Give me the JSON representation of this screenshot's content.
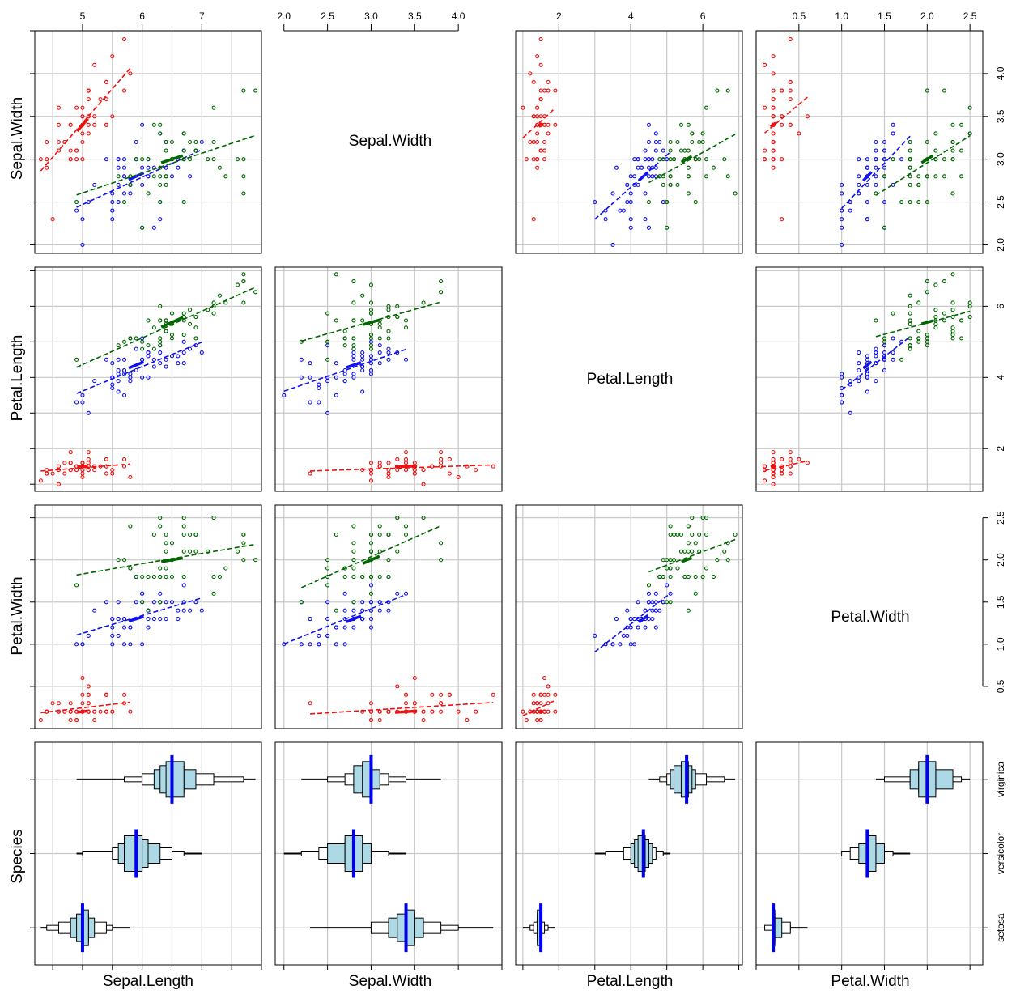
{
  "variables": [
    "Sepal.Length",
    "Sepal.Width",
    "Petal.Length",
    "Petal.Width",
    "Species"
  ],
  "species": [
    "setosa",
    "versicolor",
    "virginica"
  ],
  "colors": {
    "setosa": "#ee1111",
    "versicolor": "#1111ee",
    "virginica": "#006600",
    "grid": "#c8c8c8",
    "box_fill": "#add8e6",
    "median": "#0000ee"
  },
  "top_axes": {
    "col0": [
      "5",
      "6",
      "7"
    ],
    "col1": [
      "2.0",
      "2.5",
      "3.0",
      "3.5",
      "4.0"
    ],
    "col2": [
      "2",
      "4",
      "6"
    ],
    "col3": [
      "0.5",
      "1.0",
      "1.5",
      "2.0",
      "2.5"
    ]
  },
  "right_axes": {
    "row0": [
      "2.0",
      "2.5",
      "3.0",
      "3.5",
      "4.0"
    ],
    "row1": [
      "2",
      "4",
      "6"
    ],
    "row2": [
      "0.5",
      "1.0",
      "1.5",
      "2.0",
      "2.5"
    ],
    "row3": [
      "setosa",
      "versicolor",
      "virginica"
    ]
  },
  "chart_data": {
    "type": "scatter",
    "title": "",
    "subtitle": "",
    "layout": "scatterplot matrix (4 columns x 4 rows); diagonal panels show variable names; Species row shows per-species stacked histogram boxplots with median lines",
    "columns": [
      "Sepal.Length",
      "Sepal.Width",
      "Petal.Length",
      "Petal.Width"
    ],
    "rows": [
      "Sepal.Width",
      "Petal.Length",
      "Petal.Width",
      "Species"
    ],
    "axis_ranges": {
      "Sepal.Length": [
        4.2,
        8.0
      ],
      "Sepal.Width": [
        1.9,
        4.5
      ],
      "Petal.Length": [
        0.8,
        7.1
      ],
      "Petal.Width": [
        0.0,
        2.65
      ],
      "Species": [
        0.5,
        3.5
      ]
    },
    "grid": true,
    "legend": "none",
    "series": [
      {
        "name": "setosa",
        "color": "#ee1111",
        "points": [
          [
            5.1,
            3.5,
            1.4,
            0.2
          ],
          [
            4.9,
            3.0,
            1.4,
            0.2
          ],
          [
            4.7,
            3.2,
            1.3,
            0.2
          ],
          [
            4.6,
            3.1,
            1.5,
            0.2
          ],
          [
            5.0,
            3.6,
            1.4,
            0.2
          ],
          [
            5.4,
            3.9,
            1.7,
            0.4
          ],
          [
            4.6,
            3.4,
            1.4,
            0.3
          ],
          [
            5.0,
            3.4,
            1.5,
            0.2
          ],
          [
            4.4,
            2.9,
            1.4,
            0.2
          ],
          [
            4.9,
            3.1,
            1.5,
            0.1
          ],
          [
            5.4,
            3.7,
            1.5,
            0.2
          ],
          [
            4.8,
            3.4,
            1.6,
            0.2
          ],
          [
            4.8,
            3.0,
            1.4,
            0.1
          ],
          [
            4.3,
            3.0,
            1.1,
            0.1
          ],
          [
            5.8,
            4.0,
            1.2,
            0.2
          ],
          [
            5.7,
            4.4,
            1.5,
            0.4
          ],
          [
            5.4,
            3.9,
            1.3,
            0.4
          ],
          [
            5.1,
            3.5,
            1.4,
            0.3
          ],
          [
            5.7,
            3.8,
            1.7,
            0.3
          ],
          [
            5.1,
            3.8,
            1.5,
            0.3
          ],
          [
            5.4,
            3.4,
            1.7,
            0.2
          ],
          [
            5.1,
            3.7,
            1.5,
            0.4
          ],
          [
            4.6,
            3.6,
            1.0,
            0.2
          ],
          [
            5.1,
            3.3,
            1.7,
            0.5
          ],
          [
            4.8,
            3.4,
            1.9,
            0.2
          ],
          [
            5.0,
            3.0,
            1.6,
            0.2
          ],
          [
            5.0,
            3.4,
            1.6,
            0.4
          ],
          [
            5.2,
            3.5,
            1.5,
            0.2
          ],
          [
            5.2,
            3.4,
            1.4,
            0.2
          ],
          [
            4.7,
            3.2,
            1.6,
            0.2
          ],
          [
            4.8,
            3.1,
            1.6,
            0.2
          ],
          [
            5.4,
            3.4,
            1.5,
            0.4
          ],
          [
            5.2,
            4.1,
            1.5,
            0.1
          ],
          [
            5.5,
            4.2,
            1.4,
            0.2
          ],
          [
            4.9,
            3.1,
            1.5,
            0.2
          ],
          [
            5.0,
            3.2,
            1.2,
            0.2
          ],
          [
            5.5,
            3.5,
            1.3,
            0.2
          ],
          [
            4.9,
            3.6,
            1.4,
            0.1
          ],
          [
            4.4,
            3.0,
            1.3,
            0.2
          ],
          [
            5.1,
            3.4,
            1.5,
            0.2
          ],
          [
            5.0,
            3.5,
            1.3,
            0.3
          ],
          [
            4.5,
            2.3,
            1.3,
            0.3
          ],
          [
            4.4,
            3.2,
            1.3,
            0.2
          ],
          [
            5.0,
            3.5,
            1.6,
            0.6
          ],
          [
            5.1,
            3.8,
            1.9,
            0.4
          ],
          [
            4.8,
            3.0,
            1.4,
            0.3
          ],
          [
            5.1,
            3.8,
            1.6,
            0.2
          ],
          [
            4.6,
            3.2,
            1.4,
            0.2
          ],
          [
            5.3,
            3.7,
            1.5,
            0.2
          ],
          [
            5.0,
            3.3,
            1.4,
            0.2
          ]
        ],
        "median": [
          5.0,
          3.4,
          1.5,
          0.2
        ]
      },
      {
        "name": "versicolor",
        "color": "#1111ee",
        "points": [
          [
            7.0,
            3.2,
            4.7,
            1.4
          ],
          [
            6.4,
            3.2,
            4.5,
            1.5
          ],
          [
            6.9,
            3.1,
            4.9,
            1.5
          ],
          [
            5.5,
            2.3,
            4.0,
            1.3
          ],
          [
            6.5,
            2.8,
            4.6,
            1.5
          ],
          [
            5.7,
            2.8,
            4.5,
            1.3
          ],
          [
            6.3,
            3.3,
            4.7,
            1.6
          ],
          [
            4.9,
            2.4,
            3.3,
            1.0
          ],
          [
            6.6,
            2.9,
            4.6,
            1.3
          ],
          [
            5.2,
            2.7,
            3.9,
            1.4
          ],
          [
            5.0,
            2.0,
            3.5,
            1.0
          ],
          [
            5.9,
            3.0,
            4.2,
            1.5
          ],
          [
            6.0,
            2.2,
            4.0,
            1.0
          ],
          [
            6.1,
            2.9,
            4.7,
            1.4
          ],
          [
            5.6,
            2.9,
            3.6,
            1.3
          ],
          [
            6.7,
            3.1,
            4.4,
            1.4
          ],
          [
            5.6,
            3.0,
            4.5,
            1.5
          ],
          [
            5.8,
            2.7,
            4.1,
            1.0
          ],
          [
            6.2,
            2.2,
            4.5,
            1.5
          ],
          [
            5.6,
            2.5,
            3.9,
            1.1
          ],
          [
            5.9,
            3.2,
            4.8,
            1.8
          ],
          [
            6.1,
            2.8,
            4.0,
            1.3
          ],
          [
            6.3,
            2.5,
            4.9,
            1.5
          ],
          [
            6.1,
            2.8,
            4.7,
            1.2
          ],
          [
            6.4,
            2.9,
            4.3,
            1.3
          ],
          [
            6.6,
            3.0,
            4.4,
            1.4
          ],
          [
            6.8,
            2.8,
            4.8,
            1.4
          ],
          [
            6.7,
            3.0,
            5.0,
            1.7
          ],
          [
            6.0,
            2.9,
            4.5,
            1.5
          ],
          [
            5.7,
            2.6,
            3.5,
            1.0
          ],
          [
            5.5,
            2.4,
            3.8,
            1.1
          ],
          [
            5.5,
            2.4,
            3.7,
            1.0
          ],
          [
            5.8,
            2.7,
            3.9,
            1.2
          ],
          [
            6.0,
            2.7,
            5.1,
            1.6
          ],
          [
            5.4,
            3.0,
            4.5,
            1.5
          ],
          [
            6.0,
            3.4,
            4.5,
            1.6
          ],
          [
            6.7,
            3.1,
            4.7,
            1.5
          ],
          [
            6.3,
            2.3,
            4.4,
            1.3
          ],
          [
            5.6,
            3.0,
            4.1,
            1.3
          ],
          [
            5.5,
            2.5,
            4.0,
            1.3
          ],
          [
            5.5,
            2.6,
            4.4,
            1.2
          ],
          [
            6.1,
            3.0,
            4.6,
            1.4
          ],
          [
            5.8,
            2.6,
            4.0,
            1.2
          ],
          [
            5.0,
            2.3,
            3.3,
            1.0
          ],
          [
            5.6,
            2.7,
            4.2,
            1.3
          ],
          [
            5.7,
            3.0,
            4.2,
            1.2
          ],
          [
            5.7,
            2.9,
            4.2,
            1.3
          ],
          [
            6.2,
            2.9,
            4.3,
            1.3
          ],
          [
            5.1,
            2.5,
            3.0,
            1.1
          ],
          [
            5.7,
            2.8,
            4.1,
            1.3
          ]
        ],
        "median": [
          5.9,
          2.8,
          4.35,
          1.3
        ]
      },
      {
        "name": "virginica",
        "color": "#006600",
        "points": [
          [
            6.3,
            3.3,
            6.0,
            2.5
          ],
          [
            5.8,
            2.7,
            5.1,
            1.9
          ],
          [
            7.1,
            3.0,
            5.9,
            2.1
          ],
          [
            6.3,
            2.9,
            5.6,
            1.8
          ],
          [
            6.5,
            3.0,
            5.8,
            2.2
          ],
          [
            7.6,
            3.0,
            6.6,
            2.1
          ],
          [
            4.9,
            2.5,
            4.5,
            1.7
          ],
          [
            7.3,
            2.9,
            6.3,
            1.8
          ],
          [
            6.7,
            2.5,
            5.8,
            1.8
          ],
          [
            7.2,
            3.6,
            6.1,
            2.5
          ],
          [
            6.5,
            3.2,
            5.1,
            2.0
          ],
          [
            6.4,
            2.7,
            5.3,
            1.9
          ],
          [
            6.8,
            3.0,
            5.5,
            2.1
          ],
          [
            5.7,
            2.5,
            5.0,
            2.0
          ],
          [
            5.8,
            2.8,
            5.1,
            2.4
          ],
          [
            6.4,
            3.2,
            5.3,
            2.3
          ],
          [
            6.5,
            3.0,
            5.5,
            1.8
          ],
          [
            7.7,
            3.8,
            6.7,
            2.2
          ],
          [
            7.7,
            2.6,
            6.9,
            2.3
          ],
          [
            6.0,
            2.2,
            5.0,
            1.5
          ],
          [
            6.9,
            3.2,
            5.7,
            2.3
          ],
          [
            5.6,
            2.8,
            4.9,
            2.0
          ],
          [
            7.7,
            2.8,
            6.7,
            2.0
          ],
          [
            6.3,
            2.7,
            4.9,
            1.8
          ],
          [
            6.7,
            3.3,
            5.7,
            2.1
          ],
          [
            7.2,
            3.2,
            6.0,
            1.8
          ],
          [
            6.2,
            2.8,
            4.8,
            1.8
          ],
          [
            6.1,
            3.0,
            4.9,
            1.8
          ],
          [
            6.4,
            2.8,
            5.6,
            2.1
          ],
          [
            7.2,
            3.0,
            5.8,
            1.6
          ],
          [
            7.4,
            2.8,
            6.1,
            1.9
          ],
          [
            7.9,
            3.8,
            6.4,
            2.0
          ],
          [
            6.4,
            2.8,
            5.6,
            2.2
          ],
          [
            6.3,
            2.8,
            5.1,
            1.5
          ],
          [
            6.1,
            2.6,
            5.6,
            1.4
          ],
          [
            7.7,
            3.0,
            6.1,
            2.3
          ],
          [
            6.3,
            3.4,
            5.6,
            2.4
          ],
          [
            6.4,
            3.1,
            5.5,
            1.8
          ],
          [
            6.0,
            3.0,
            4.8,
            1.8
          ],
          [
            6.9,
            3.1,
            5.4,
            2.1
          ],
          [
            6.7,
            3.1,
            5.6,
            2.4
          ],
          [
            6.9,
            3.1,
            5.1,
            2.3
          ],
          [
            5.8,
            2.7,
            5.1,
            1.9
          ],
          [
            6.8,
            3.2,
            5.9,
            2.3
          ],
          [
            6.7,
            3.3,
            5.7,
            2.5
          ],
          [
            6.7,
            3.0,
            5.2,
            2.3
          ],
          [
            6.3,
            2.5,
            5.0,
            1.9
          ],
          [
            6.5,
            3.0,
            5.2,
            2.0
          ],
          [
            6.2,
            3.4,
            5.4,
            2.3
          ],
          [
            5.9,
            3.0,
            5.1,
            1.8
          ]
        ],
        "median": [
          6.5,
          3.0,
          5.55,
          2.0
        ]
      }
    ]
  }
}
